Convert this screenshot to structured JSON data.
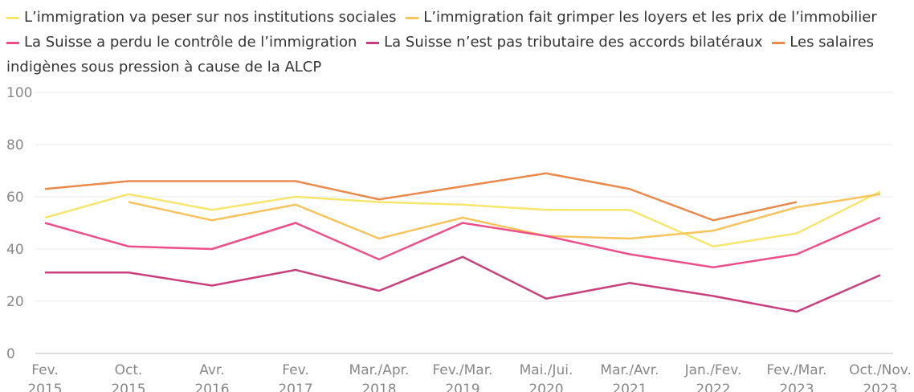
{
  "chart_data": {
    "type": "line",
    "categories": [
      "Fev. 2015",
      "Oct. 2015",
      "Avr. 2016",
      "Fev. 2017",
      "Mar./Apr. 2018",
      "Fev./Mar. 2019",
      "Mai./Jui. 2020",
      "Mar./Avr. 2021",
      "Jan./Fev. 2022",
      "Fev./Mar. 2023",
      "Oct./Nov. 2023"
    ],
    "series": [
      {
        "name": "L’immigration va peser sur nos institutions sociales",
        "color": "#f5e76e",
        "values": [
          52,
          61,
          55,
          60,
          58,
          57,
          55,
          55,
          41,
          46,
          62
        ]
      },
      {
        "name": "L’immigration fait grimper les loyers et les prix de l’immobilier",
        "color": "#f5c45c",
        "values": [
          null,
          58,
          51,
          57,
          44,
          52,
          45,
          44,
          47,
          56,
          61
        ]
      },
      {
        "name": "La Suisse a perdu le contrôle de l’immigration",
        "color": "#ec4f8a",
        "values": [
          50,
          41,
          40,
          50,
          36,
          50,
          45,
          38,
          33,
          38,
          52
        ]
      },
      {
        "name": "La Suisse n’est pas tributaire des accords bilatéraux",
        "color": "#c9407e",
        "values": [
          31,
          31,
          26,
          32,
          24,
          37,
          21,
          27,
          22,
          16,
          30
        ]
      },
      {
        "name": "Les salaires indigènes sous pression à cause de la ALCP",
        "color": "#e98a4c",
        "values": [
          63,
          66,
          66,
          66,
          59,
          64,
          69,
          63,
          51,
          58,
          null
        ]
      }
    ],
    "ylim": [
      0,
      100
    ],
    "yticks": [
      0,
      20,
      40,
      60,
      80,
      100
    ],
    "grid": true
  }
}
